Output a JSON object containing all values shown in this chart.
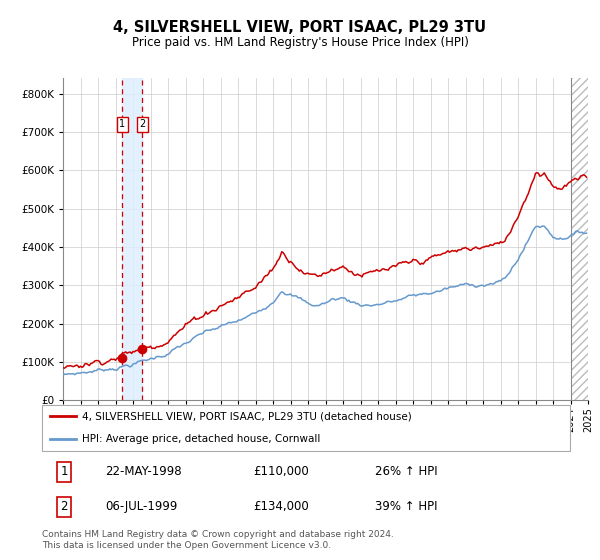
{
  "title": "4, SILVERSHELL VIEW, PORT ISAAC, PL29 3TU",
  "subtitle": "Price paid vs. HM Land Registry's House Price Index (HPI)",
  "legend_line1": "4, SILVERSHELL VIEW, PORT ISAAC, PL29 3TU (detached house)",
  "legend_line2": "HPI: Average price, detached house, Cornwall",
  "sale1_date": "22-MAY-1998",
  "sale1_price": "£110,000",
  "sale1_hpi": "26% ↑ HPI",
  "sale1_year": 1998.38,
  "sale1_value": 110000,
  "sale2_date": "06-JUL-1999",
  "sale2_price": "£134,000",
  "sale2_hpi": "39% ↑ HPI",
  "sale2_year": 1999.52,
  "sale2_value": 134000,
  "ylim": [
    0,
    840000
  ],
  "xlim_start": 1995.0,
  "xlim_end": 2025.0,
  "footer": "Contains HM Land Registry data © Crown copyright and database right 2024.\nThis data is licensed under the Open Government Licence v3.0.",
  "red_color": "#cc0000",
  "blue_color": "#6699cc",
  "bg_shade_color": "#ddeeff",
  "hatch_color": "#cccccc"
}
